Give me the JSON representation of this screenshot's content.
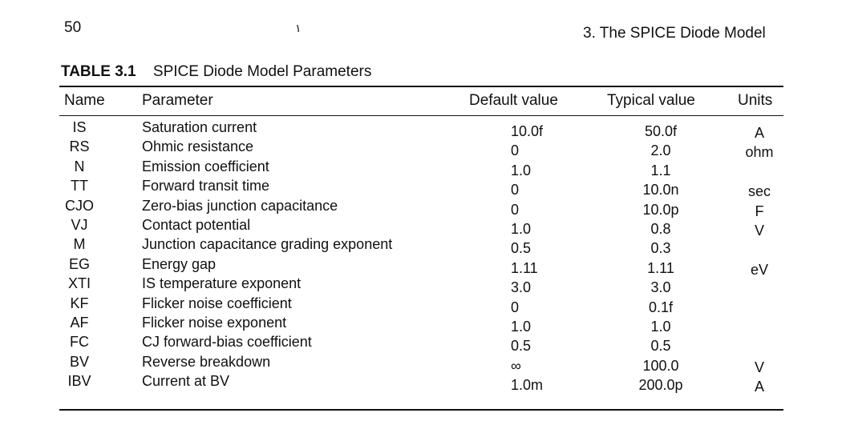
{
  "page": {
    "number": "50",
    "stray_mark": "۱",
    "running_head": "3. The SPICE Diode Model"
  },
  "table": {
    "label": "TABLE 3.1",
    "caption": "SPICE Diode Model Parameters",
    "columns": [
      "Name",
      "Parameter",
      "Default value",
      "Typical value",
      "Units"
    ],
    "rows": [
      {
        "name": "IS",
        "parameter": "Saturation current",
        "default": "10.0f",
        "typical": "50.0f",
        "units": "A"
      },
      {
        "name": "RS",
        "parameter": "Ohmic resistance",
        "default": "0",
        "typical": "2.0",
        "units": "ohm"
      },
      {
        "name": "N",
        "parameter": "Emission coefficient",
        "default": "1.0",
        "typical": "1.1",
        "units": ""
      },
      {
        "name": "TT",
        "parameter": "Forward transit time",
        "default": "0",
        "typical": "10.0n",
        "units": "sec"
      },
      {
        "name": "CJO",
        "parameter": "Zero-bias junction capacitance",
        "default": "0",
        "typical": "10.0p",
        "units": "F"
      },
      {
        "name": "VJ",
        "parameter": "Contact potential",
        "default": "1.0",
        "typical": "0.8",
        "units": "V"
      },
      {
        "name": "M",
        "parameter": "Junction capacitance grading exponent",
        "default": "0.5",
        "typical": "0.3",
        "units": ""
      },
      {
        "name": "EG",
        "parameter": "Energy gap",
        "default": "1.11",
        "typical": "1.11",
        "units": "eV"
      },
      {
        "name": "XTI",
        "parameter": "IS temperature exponent",
        "default": "3.0",
        "typical": "3.0",
        "units": ""
      },
      {
        "name": "KF",
        "parameter": "Flicker noise coefficient",
        "default": "0",
        "typical": "0.1f",
        "units": ""
      },
      {
        "name": "AF",
        "parameter": "Flicker noise exponent",
        "default": "1.0",
        "typical": "1.0",
        "units": ""
      },
      {
        "name": "FC",
        "parameter": "CJ forward-bias coefficient",
        "default": "0.5",
        "typical": "0.5",
        "units": ""
      },
      {
        "name": "BV",
        "parameter": "Reverse breakdown",
        "default": "∞",
        "typical": "100.0",
        "units": "V"
      },
      {
        "name": "IBV",
        "parameter": "Current at BV",
        "default": "1.0m",
        "typical": "200.0p",
        "units": "A"
      }
    ]
  }
}
